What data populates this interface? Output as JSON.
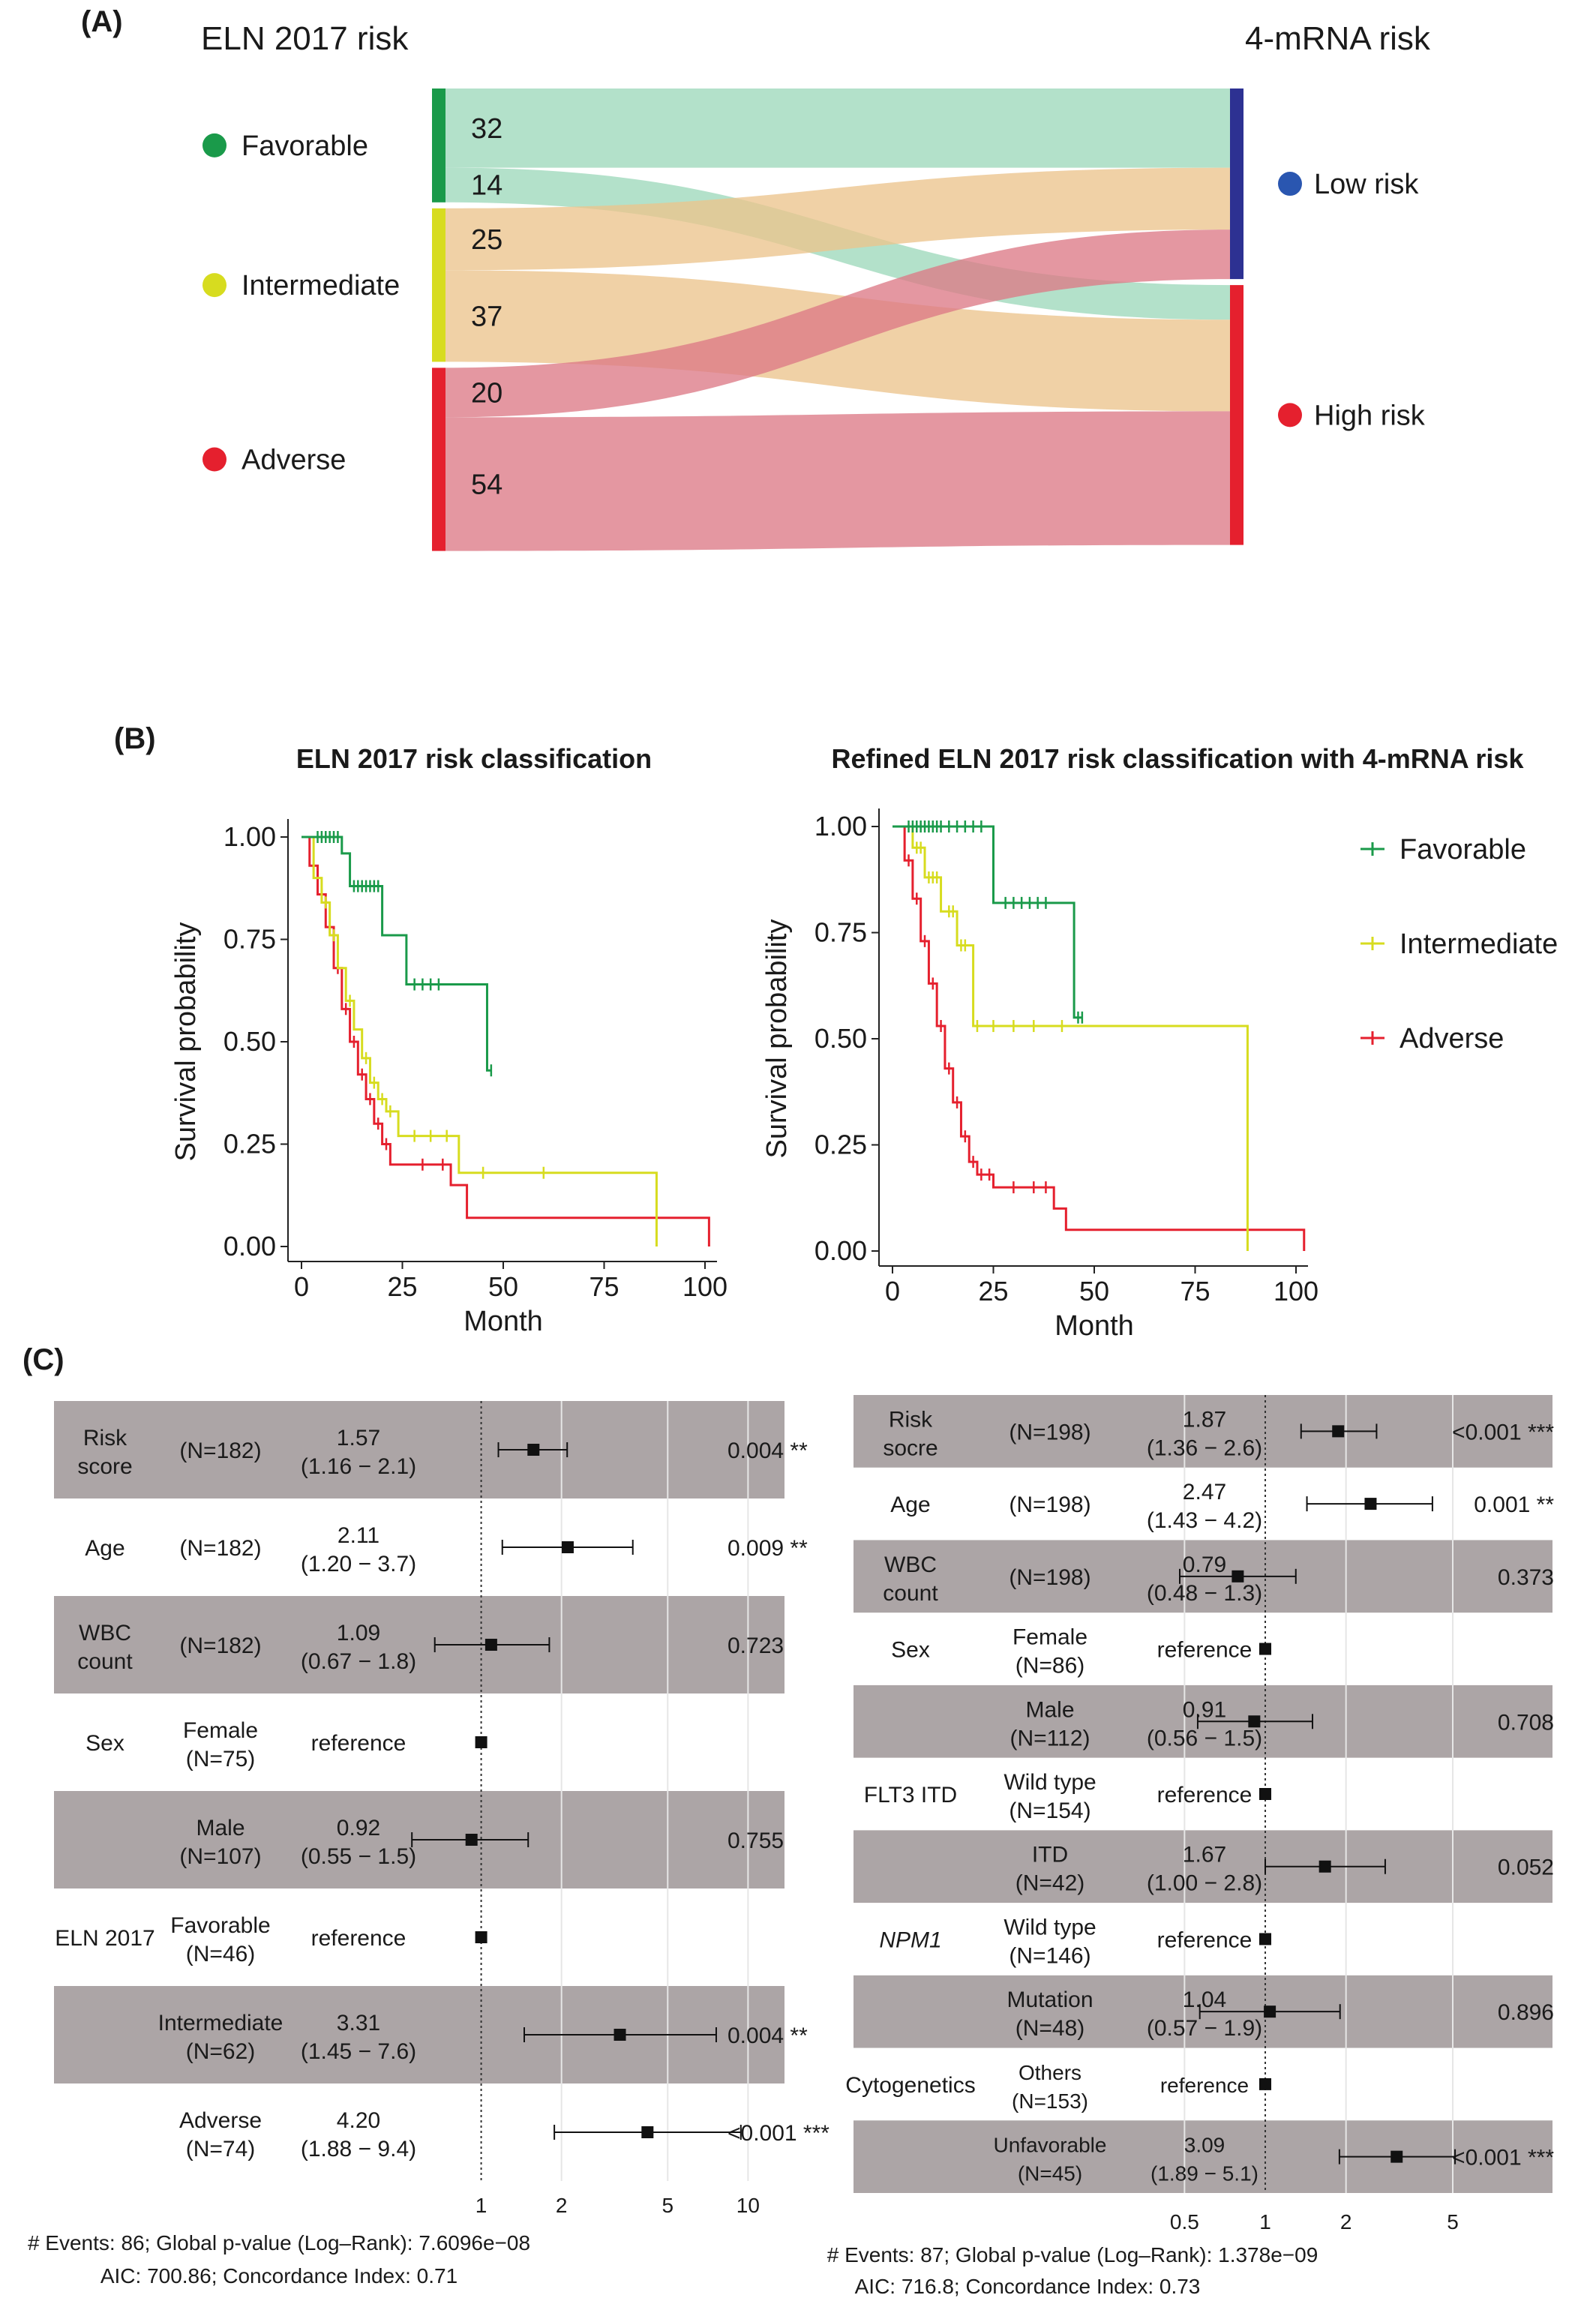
{
  "colors": {
    "favorable": "#1a9a4a",
    "intermediate": "#d7dc1f",
    "adverse": "#e5202e",
    "low_risk": "#2d3192",
    "low_dot": "#2a56b0",
    "high_risk": "#e5202e",
    "flow_green": "#9dd8bb",
    "flow_orange": "#ecc48d",
    "flow_red": "#dc7a87",
    "band": "#aca5a6"
  },
  "panel_a": {
    "label": "(A)",
    "left_header": "ELN 2017 risk",
    "right_header": "4-mRNA risk",
    "left_categories": [
      "Favorable",
      "Intermediate",
      "Adverse"
    ],
    "right_categories": [
      "Low risk",
      "High risk"
    ]
  },
  "panel_b": {
    "label": "(B)"
  },
  "panel_c": {
    "label": "(C)",
    "left": {
      "footer_line1": "# Events: 86; Global p-value (Log–Rank): 7.6096e−08",
      "footer_line2": "AIC: 700.86; Concordance Index: 0.71"
    },
    "right": {
      "footer_line1": "# Events: 87; Global p-value (Log–Rank): 1.378e−09",
      "footer_line2": "AIC: 716.8; Concordance Index: 0.73"
    }
  },
  "chart_data": [
    {
      "type": "sankey",
      "left_header": "ELN 2017 risk",
      "right_header": "4-mRNA risk",
      "flows": [
        {
          "from": "Favorable",
          "to": "Low risk",
          "value": 32
        },
        {
          "from": "Favorable",
          "to": "High risk",
          "value": 14
        },
        {
          "from": "Intermediate",
          "to": "Low risk",
          "value": 25
        },
        {
          "from": "Intermediate",
          "to": "High risk",
          "value": 37
        },
        {
          "from": "Adverse",
          "to": "Low risk",
          "value": 20
        },
        {
          "from": "Adverse",
          "to": "High risk",
          "value": 54
        }
      ]
    },
    {
      "type": "line",
      "title": "ELN 2017 risk classification",
      "xlabel": "Month",
      "ylabel": "Survival probability",
      "xlim": [
        0,
        100
      ],
      "ylim": [
        0,
        1
      ],
      "xticks": [
        "0",
        "25",
        "50",
        "75",
        "100"
      ],
      "yticks": [
        "0.00",
        "0.25",
        "0.50",
        "0.75",
        "1.00"
      ],
      "series": [
        {
          "name": "Favorable",
          "x": [
            0,
            10,
            12,
            20,
            26,
            46,
            47
          ],
          "y": [
            1.0,
            0.96,
            0.88,
            0.76,
            0.64,
            0.43,
            0.43
          ],
          "censor_x": [
            4,
            5,
            6,
            7,
            8,
            9,
            13,
            14,
            15,
            16,
            17,
            18,
            19,
            28,
            30,
            32,
            34,
            47
          ]
        },
        {
          "name": "Intermediate",
          "x": [
            0,
            3,
            5,
            7,
            9,
            11,
            13,
            15,
            17,
            19,
            21,
            24,
            39,
            88,
            88
          ],
          "y": [
            1.0,
            0.9,
            0.84,
            0.76,
            0.68,
            0.6,
            0.53,
            0.46,
            0.4,
            0.36,
            0.33,
            0.27,
            0.18,
            0.18,
            0.0
          ],
          "censor_x": [
            6,
            8,
            12,
            16,
            18,
            20,
            22,
            28,
            32,
            36,
            45,
            60
          ]
        },
        {
          "name": "Adverse",
          "x": [
            0,
            2,
            4,
            6,
            8,
            10,
            12,
            14,
            16,
            18,
            20,
            22,
            37,
            41,
            101,
            101
          ],
          "y": [
            1.0,
            0.93,
            0.86,
            0.78,
            0.68,
            0.58,
            0.5,
            0.42,
            0.36,
            0.3,
            0.25,
            0.2,
            0.15,
            0.07,
            0.07,
            0.0
          ],
          "censor_x": [
            3,
            5,
            7,
            9,
            11,
            13,
            15,
            17,
            19,
            21,
            30,
            35
          ]
        }
      ],
      "legend": "right"
    },
    {
      "type": "line",
      "title": "Refined ELN 2017 risk classification with 4-mRNA risk",
      "xlabel": "Month",
      "ylabel": "Survival probability",
      "xlim": [
        0,
        100
      ],
      "ylim": [
        0,
        1
      ],
      "xticks": [
        "0",
        "25",
        "50",
        "75",
        "100"
      ],
      "yticks": [
        "0.00",
        "0.25",
        "0.50",
        "0.75",
        "1.00"
      ],
      "series": [
        {
          "name": "Favorable",
          "x": [
            0,
            25,
            45,
            47
          ],
          "y": [
            1.0,
            0.82,
            0.55,
            0.55
          ],
          "censor_x": [
            4,
            5,
            6,
            7,
            8,
            9,
            10,
            11,
            12,
            14,
            16,
            18,
            20,
            22,
            28,
            30,
            32,
            34,
            36,
            38,
            46,
            47
          ]
        },
        {
          "name": "Intermediate",
          "x": [
            0,
            5,
            8,
            12,
            16,
            20,
            88,
            88
          ],
          "y": [
            1.0,
            0.95,
            0.88,
            0.8,
            0.72,
            0.53,
            0.53,
            0.0
          ],
          "censor_x": [
            6,
            7,
            9,
            10,
            11,
            14,
            15,
            17,
            18,
            21,
            25,
            30,
            35,
            42
          ]
        },
        {
          "name": "Adverse",
          "x": [
            0,
            3,
            5,
            7,
            9,
            11,
            13,
            15,
            17,
            19,
            21,
            25,
            40,
            43,
            102,
            102
          ],
          "y": [
            1.0,
            0.92,
            0.83,
            0.73,
            0.63,
            0.53,
            0.43,
            0.35,
            0.27,
            0.21,
            0.18,
            0.15,
            0.1,
            0.05,
            0.05,
            0.0
          ],
          "censor_x": [
            4,
            6,
            8,
            10,
            12,
            14,
            16,
            18,
            20,
            22,
            24,
            30,
            35,
            38
          ]
        }
      ],
      "legend": "right"
    },
    {
      "type": "forest",
      "xticks": [
        "1",
        "2",
        "5",
        "10"
      ],
      "log_scale": true,
      "rows": [
        {
          "var": "Risk score",
          "level": "",
          "n": "(N=182)",
          "hr": "1.57",
          "ci": "(1.16 − 2.1)",
          "p": "0.004 **",
          "est": 1.57,
          "lo": 1.16,
          "hi": 2.1
        },
        {
          "var": "Age",
          "level": "",
          "n": "(N=182)",
          "hr": "2.11",
          "ci": "(1.20 − 3.7)",
          "p": "0.009 **",
          "est": 2.11,
          "lo": 1.2,
          "hi": 3.7
        },
        {
          "var": "WBC count",
          "level": "",
          "n": "(N=182)",
          "hr": "1.09",
          "ci": "(0.67 − 1.8)",
          "p": "0.723",
          "est": 1.09,
          "lo": 0.67,
          "hi": 1.8
        },
        {
          "var": "Sex",
          "level": "Female",
          "n": "(N=75)",
          "hr": "reference",
          "ci": "",
          "p": "",
          "est": 1.0,
          "lo": 1.0,
          "hi": 1.0
        },
        {
          "var": "",
          "level": "Male",
          "n": "(N=107)",
          "hr": "0.92",
          "ci": "(0.55 − 1.5)",
          "p": "0.755",
          "est": 0.92,
          "lo": 0.55,
          "hi": 1.5
        },
        {
          "var": "ELN 2017",
          "level": "Favorable",
          "n": "(N=46)",
          "hr": "reference",
          "ci": "",
          "p": "",
          "est": 1.0,
          "lo": 1.0,
          "hi": 1.0
        },
        {
          "var": "",
          "level": "Intermediate",
          "n": "(N=62)",
          "hr": "3.31",
          "ci": "(1.45 − 7.6)",
          "p": "0.004 **",
          "est": 3.31,
          "lo": 1.45,
          "hi": 7.6
        },
        {
          "var": "",
          "level": "Adverse",
          "n": "(N=74)",
          "hr": "4.20",
          "ci": "(1.88 − 9.4)",
          "p": "<0.001 ***",
          "est": 4.2,
          "lo": 1.88,
          "hi": 9.4
        }
      ]
    },
    {
      "type": "forest",
      "xticks": [
        "0.5",
        "1",
        "2",
        "5"
      ],
      "log_scale": true,
      "rows": [
        {
          "var": "Risk socre",
          "level": "",
          "n": "(N=198)",
          "hr": "1.87",
          "ci": "(1.36 − 2.6)",
          "p": "<0.001 ***",
          "est": 1.87,
          "lo": 1.36,
          "hi": 2.6
        },
        {
          "var": "Age",
          "level": "",
          "n": "(N=198)",
          "hr": "2.47",
          "ci": "(1.43 − 4.2)",
          "p": "0.001 **",
          "est": 2.47,
          "lo": 1.43,
          "hi": 4.2
        },
        {
          "var": "WBC count",
          "level": "",
          "n": "(N=198)",
          "hr": "0.79",
          "ci": "(0.48 − 1.3)",
          "p": "0.373",
          "est": 0.79,
          "lo": 0.48,
          "hi": 1.3
        },
        {
          "var": "Sex",
          "level": "Female",
          "n": "(N=86)",
          "hr": "reference",
          "ci": "",
          "p": "",
          "est": 1.0,
          "lo": 1.0,
          "hi": 1.0
        },
        {
          "var": "",
          "level": "Male",
          "n": "(N=112)",
          "hr": "0.91",
          "ci": "(0.56 − 1.5)",
          "p": "0.708",
          "est": 0.91,
          "lo": 0.56,
          "hi": 1.5
        },
        {
          "var": "FLT3 ITD",
          "level": "Wild type",
          "n": "(N=154)",
          "hr": "reference",
          "ci": "",
          "p": "",
          "est": 1.0,
          "lo": 1.0,
          "hi": 1.0
        },
        {
          "var": "",
          "level": "ITD",
          "n": "(N=42)",
          "hr": "1.67",
          "ci": "(1.00 − 2.8)",
          "p": "0.052",
          "est": 1.67,
          "lo": 1.0,
          "hi": 2.8
        },
        {
          "var": "NPM1",
          "level": "Wild type",
          "n": "(N=146)",
          "hr": "reference",
          "ci": "",
          "p": "",
          "est": 1.0,
          "lo": 1.0,
          "hi": 1.0
        },
        {
          "var": "",
          "level": "Mutation",
          "n": "(N=48)",
          "hr": "1.04",
          "ci": "(0.57 − 1.9)",
          "p": "0.896",
          "est": 1.04,
          "lo": 0.57,
          "hi": 1.9
        },
        {
          "var": "Cytogenetics",
          "level": "Others",
          "n": "(N=153)",
          "hr": "reference",
          "ci": "",
          "p": "",
          "est": 1.0,
          "lo": 1.0,
          "hi": 1.0
        },
        {
          "var": "",
          "level": "Unfavorable",
          "n": "(N=45)",
          "hr": "3.09",
          "ci": "(1.89 − 5.1)",
          "p": "<0.001 ***",
          "est": 3.09,
          "lo": 1.89,
          "hi": 5.1
        }
      ]
    }
  ]
}
